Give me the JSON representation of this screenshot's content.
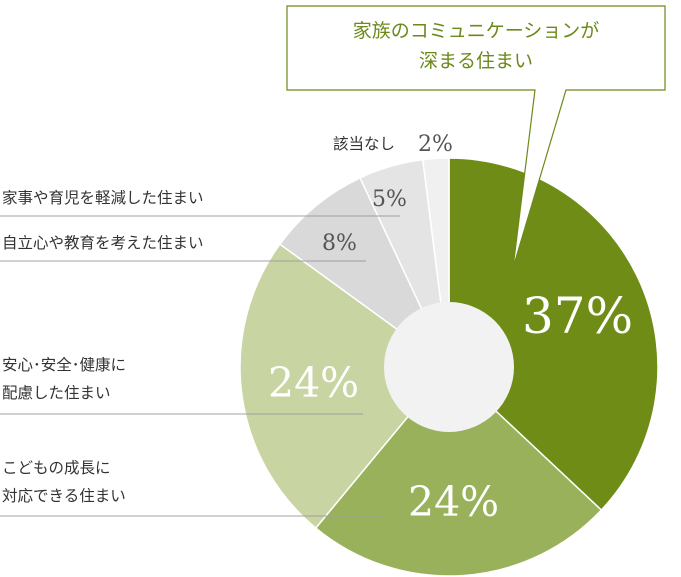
{
  "chart_data": {
    "type": "pie",
    "title": "",
    "slices": [
      {
        "label": "家族のコミュニケーションが深まる住まい",
        "value": 37,
        "display": "37%",
        "color": "#6f8c17"
      },
      {
        "label": "こどもの成長に対応できる住まい",
        "value": 24,
        "display": "24%",
        "color": "#99b15a"
      },
      {
        "label": "安心・安全・健康に配慮した住まい",
        "value": 24,
        "display": "24%",
        "color": "#c8d5a3"
      },
      {
        "label": "自立心や教育を考えた住まい",
        "value": 8,
        "display": "8%",
        "color": "#d9d9d9"
      },
      {
        "label": "家事や育児を軽減した住まい",
        "value": 5,
        "display": "5%",
        "color": "#e4e4e4"
      },
      {
        "label": "該当なし",
        "value": 2,
        "display": "2%",
        "color": "#f0f0f0"
      }
    ],
    "hole_color": "#f2f2f2",
    "leader_color": "#9a9a9a"
  },
  "callout": {
    "line1": "家族のコミュニケーションが",
    "line2": "深まる住まい",
    "border_color": "#6b8a1a"
  },
  "labels": {
    "kodomo_line1": "こどもの成長に",
    "kodomo_line2": "対応できる住まい",
    "anshin_line1": "安心･安全･健康に",
    "anshin_line2": "配慮した住まい",
    "jiritsu": "自立心や教育を考えた住まい",
    "kaji": "家事や育児を軽減した住まい",
    "gaitou": "該当なし"
  }
}
